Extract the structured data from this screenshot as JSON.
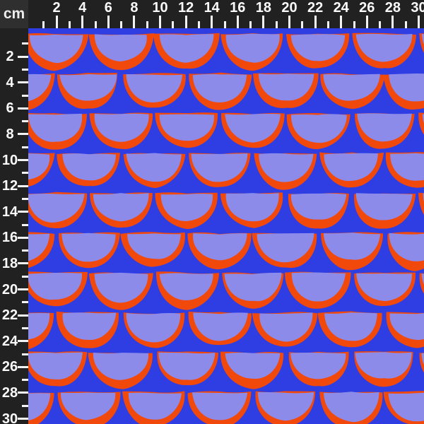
{
  "ruler": {
    "unit_label": "cm",
    "top_labels": [
      "2",
      "4",
      "6",
      "8",
      "10",
      "12",
      "14",
      "16",
      "18",
      "20",
      "22",
      "24",
      "26",
      "28",
      "30"
    ],
    "left_labels": [
      "2",
      "4",
      "6",
      "8",
      "10",
      "12",
      "14",
      "16",
      "18",
      "20",
      "22",
      "24",
      "26",
      "28",
      "30"
    ],
    "colors": {
      "strip_background": "#212121",
      "corner_background": "#2f2f2f",
      "tick": "#f4f4f4",
      "label_text": "#fafafa"
    }
  },
  "fabric": {
    "motif": "half-circle-scallops",
    "colors": {
      "background_blue": "#2e3ee2",
      "scallop_fill_lavender": "#8d8bea",
      "scallop_outline_orange": "#f1480c"
    }
  }
}
